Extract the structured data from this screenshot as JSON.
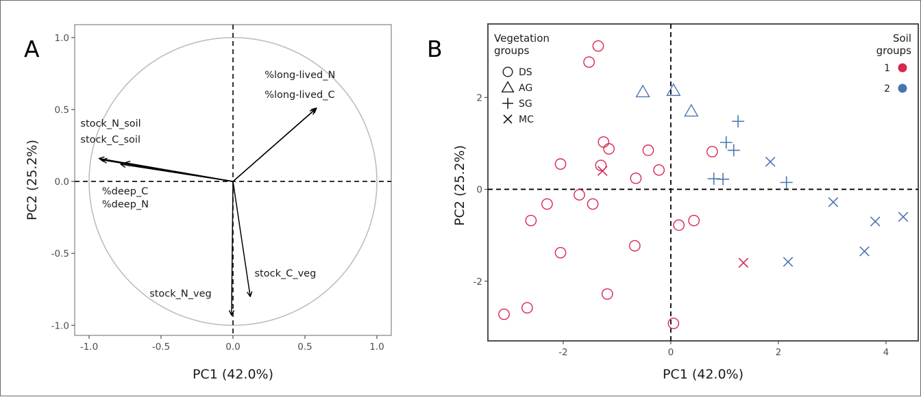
{
  "chart_data": [
    {
      "type": "biplot",
      "panel_label": "A",
      "xlabel": "PC1 (42.0%)",
      "ylabel": "PC2 (25.2%)",
      "xlim": [
        -1.1,
        1.1
      ],
      "ylim": [
        -1.07,
        1.09
      ],
      "xticks": [
        -1.0,
        -0.5,
        0.0,
        0.5,
        1.0
      ],
      "xtick_labels": [
        "-1.0",
        "-0.5",
        "0.0",
        "0.5",
        "1.0"
      ],
      "yticks": [
        -1.0,
        -0.5,
        0.0,
        0.5,
        1.0
      ],
      "ytick_labels": [
        "-1.0",
        "-0.5",
        "0.0",
        "0.5",
        "1.0"
      ],
      "circle_radius": 1.0,
      "circle_color": "#bdbdbd",
      "vectors": [
        {
          "name": "%long-lived_N",
          "x": 0.57,
          "y": 0.5
        },
        {
          "name": "%long-lived_C",
          "x": 0.58,
          "y": 0.51
        },
        {
          "name": "stock_N_soil",
          "x": -0.93,
          "y": 0.16
        },
        {
          "name": "stock_C_soil",
          "x": -0.91,
          "y": 0.15
        },
        {
          "name": "%deep_C",
          "x": -0.78,
          "y": 0.12
        },
        {
          "name": "%deep_N",
          "x": -0.75,
          "y": 0.13
        },
        {
          "name": "stock_N_veg",
          "x": -0.01,
          "y": -0.93
        },
        {
          "name": "stock_C_veg",
          "x": 0.12,
          "y": -0.8
        }
      ],
      "labels": [
        {
          "text": "%long-lived_N",
          "x": 0.22,
          "y": 0.72
        },
        {
          "text": "%long-lived_C",
          "x": 0.22,
          "y": 0.58
        },
        {
          "text": "stock_N_soil",
          "x": -1.06,
          "y": 0.38
        },
        {
          "text": "stock_C_soil",
          "x": -1.06,
          "y": 0.27
        },
        {
          "text": "%deep_C",
          "x": -0.91,
          "y": -0.09
        },
        {
          "text": "%deep_N",
          "x": -0.91,
          "y": -0.18
        },
        {
          "text": "stock_N_veg",
          "x": -0.58,
          "y": -0.8
        },
        {
          "text": "stock_C_veg",
          "x": 0.15,
          "y": -0.66
        }
      ]
    },
    {
      "type": "scatter",
      "panel_label": "B",
      "xlabel": "PC1 (42.0%)",
      "ylabel": "PC2 (25.2%)",
      "xlim": [
        -3.4,
        4.6
      ],
      "ylim": [
        -3.3,
        3.6
      ],
      "xticks": [
        -2,
        0,
        2,
        4
      ],
      "xtick_labels": [
        "-2",
        "0",
        "2",
        "4"
      ],
      "yticks": [
        -2,
        0,
        2
      ],
      "ytick_labels": [
        "-2",
        "0",
        "2"
      ],
      "legend_vegetation": {
        "title_line1": "Vegetation",
        "title_line2": "groups",
        "items": [
          {
            "shape": "circle",
            "label": "DS"
          },
          {
            "shape": "triangle",
            "label": "AG"
          },
          {
            "shape": "plus",
            "label": "SG"
          },
          {
            "shape": "cross",
            "label": "MC"
          }
        ]
      },
      "legend_soil": {
        "title_line1": "Soil",
        "title_line2": "groups",
        "items": [
          {
            "label": "1",
            "color": "#d7264f"
          },
          {
            "label": "2",
            "color": "#4a74b0"
          }
        ]
      },
      "colors": {
        "1": "#d7264f",
        "2": "#4a74b0"
      },
      "points": [
        {
          "x": -1.35,
          "y": 3.12,
          "shape": "circle",
          "soil": "1"
        },
        {
          "x": -1.52,
          "y": 2.77,
          "shape": "circle",
          "soil": "1"
        },
        {
          "x": -1.25,
          "y": 1.03,
          "shape": "circle",
          "soil": "1"
        },
        {
          "x": -1.15,
          "y": 0.88,
          "shape": "circle",
          "soil": "1"
        },
        {
          "x": -2.05,
          "y": 0.55,
          "shape": "circle",
          "soil": "1"
        },
        {
          "x": -1.3,
          "y": 0.52,
          "shape": "circle",
          "soil": "1"
        },
        {
          "x": -0.42,
          "y": 0.85,
          "shape": "circle",
          "soil": "1"
        },
        {
          "x": -0.22,
          "y": 0.42,
          "shape": "circle",
          "soil": "1"
        },
        {
          "x": -0.65,
          "y": 0.24,
          "shape": "circle",
          "soil": "1"
        },
        {
          "x": 0.77,
          "y": 0.82,
          "shape": "circle",
          "soil": "1"
        },
        {
          "x": -1.7,
          "y": -0.12,
          "shape": "circle",
          "soil": "1"
        },
        {
          "x": -1.45,
          "y": -0.32,
          "shape": "circle",
          "soil": "1"
        },
        {
          "x": -2.3,
          "y": -0.32,
          "shape": "circle",
          "soil": "1"
        },
        {
          "x": -2.6,
          "y": -0.68,
          "shape": "circle",
          "soil": "1"
        },
        {
          "x": 0.15,
          "y": -0.78,
          "shape": "circle",
          "soil": "1"
        },
        {
          "x": 0.43,
          "y": -0.68,
          "shape": "circle",
          "soil": "1"
        },
        {
          "x": -0.67,
          "y": -1.23,
          "shape": "circle",
          "soil": "1"
        },
        {
          "x": -2.05,
          "y": -1.38,
          "shape": "circle",
          "soil": "1"
        },
        {
          "x": -1.18,
          "y": -2.28,
          "shape": "circle",
          "soil": "1"
        },
        {
          "x": -2.67,
          "y": -2.58,
          "shape": "circle",
          "soil": "1"
        },
        {
          "x": -3.1,
          "y": -2.72,
          "shape": "circle",
          "soil": "1"
        },
        {
          "x": 0.05,
          "y": -2.92,
          "shape": "circle",
          "soil": "1"
        },
        {
          "x": -1.27,
          "y": 0.4,
          "shape": "cross",
          "soil": "1"
        },
        {
          "x": 1.35,
          "y": -1.6,
          "shape": "cross",
          "soil": "1"
        },
        {
          "x": -0.52,
          "y": 2.12,
          "shape": "triangle",
          "soil": "2"
        },
        {
          "x": 0.05,
          "y": 2.15,
          "shape": "triangle",
          "soil": "2"
        },
        {
          "x": 0.38,
          "y": 1.7,
          "shape": "triangle",
          "soil": "2"
        },
        {
          "x": 1.25,
          "y": 1.48,
          "shape": "plus",
          "soil": "2"
        },
        {
          "x": 1.03,
          "y": 1.02,
          "shape": "plus",
          "soil": "2"
        },
        {
          "x": 1.17,
          "y": 0.85,
          "shape": "plus",
          "soil": "2"
        },
        {
          "x": 0.8,
          "y": 0.23,
          "shape": "plus",
          "soil": "2"
        },
        {
          "x": 0.97,
          "y": 0.22,
          "shape": "plus",
          "soil": "2"
        },
        {
          "x": 2.15,
          "y": 0.15,
          "shape": "plus",
          "soil": "2"
        },
        {
          "x": 1.85,
          "y": 0.6,
          "shape": "cross",
          "soil": "2"
        },
        {
          "x": 3.02,
          "y": -0.28,
          "shape": "cross",
          "soil": "2"
        },
        {
          "x": 3.8,
          "y": -0.7,
          "shape": "cross",
          "soil": "2"
        },
        {
          "x": 4.32,
          "y": -0.6,
          "shape": "cross",
          "soil": "2"
        },
        {
          "x": 3.6,
          "y": -1.35,
          "shape": "cross",
          "soil": "2"
        },
        {
          "x": 2.18,
          "y": -1.58,
          "shape": "cross",
          "soil": "2"
        }
      ]
    }
  ]
}
